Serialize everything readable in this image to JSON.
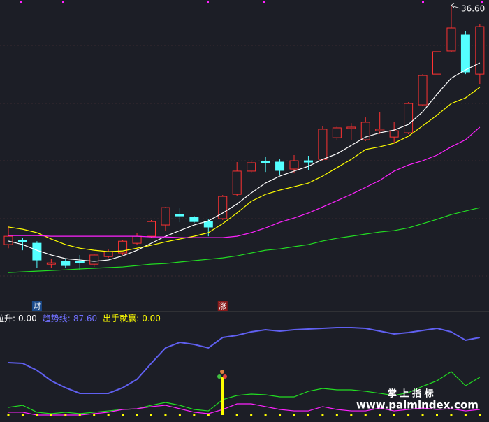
{
  "chart_data": [
    {
      "type": "candlestick",
      "ylim": [
        18.68,
        36.92
      ],
      "up_color": "#ff3232",
      "down_color": "#54ffff",
      "open": [
        22.57,
        22.82,
        22.65,
        21.42,
        21.59,
        21.59,
        21.42,
        21.87,
        22.08,
        22.65,
        23.06,
        23.72,
        24.33,
        24.17,
        23.92,
        24.09,
        25.52,
        26.88,
        27.45,
        27.41,
        27.0,
        27.49,
        27.57,
        28.84,
        29.38,
        28.72,
        29.25,
        28.88,
        29.13,
        30.77,
        32.57,
        33.93,
        34.87,
        32.57
      ],
      "close": [
        23.06,
        22.73,
        21.67,
        21.5,
        21.34,
        21.5,
        21.96,
        22.16,
        22.77,
        23.06,
        23.92,
        24.74,
        24.25,
        23.92,
        23.6,
        25.4,
        26.88,
        27.37,
        27.37,
        26.92,
        27.49,
        27.41,
        29.34,
        29.42,
        29.46,
        29.75,
        29.34,
        29.25,
        30.85,
        32.49,
        33.89,
        35.28,
        32.7,
        35.36
      ],
      "high": [
        23.68,
        22.98,
        22.77,
        21.75,
        21.75,
        21.96,
        22.04,
        22.28,
        22.86,
        23.27,
        24.01,
        24.78,
        24.7,
        24.25,
        24.09,
        25.48,
        27.41,
        27.49,
        27.74,
        27.57,
        27.82,
        27.78,
        29.54,
        29.54,
        29.7,
        30.03,
        30.36,
        29.75,
        30.93,
        32.57,
        33.97,
        36.6,
        35.08,
        35.49
      ],
      "low": [
        22.36,
        22.24,
        21.22,
        21.22,
        21.18,
        21.09,
        21.26,
        21.79,
        21.96,
        22.57,
        22.98,
        23.39,
        23.88,
        23.84,
        23.06,
        24.01,
        25.44,
        26.79,
        26.83,
        26.67,
        26.75,
        26.96,
        27.49,
        28.72,
        28.72,
        28.64,
        29.05,
        28.56,
        29.05,
        30.69,
        32.49,
        33.85,
        32.57,
        32.0
      ],
      "ma_series": [
        {
          "color": "#ffffff",
          "values": [
            22.78,
            22.57,
            22.24,
            21.96,
            21.75,
            21.67,
            21.59,
            21.67,
            21.91,
            22.24,
            22.65,
            23.06,
            23.39,
            23.72,
            23.96,
            24.42,
            24.95,
            25.6,
            26.18,
            26.59,
            26.88,
            27.16,
            27.57,
            27.9,
            28.39,
            28.88,
            29.13,
            29.29,
            29.62,
            30.36,
            31.39,
            32.33,
            32.82,
            33.23
          ]
        },
        {
          "color": "#ffff00",
          "values": [
            23.6,
            23.47,
            23.27,
            22.9,
            22.57,
            22.36,
            22.24,
            22.16,
            22.2,
            22.36,
            22.53,
            22.73,
            22.9,
            23.06,
            23.27,
            23.8,
            24.42,
            25.11,
            25.52,
            25.77,
            25.97,
            26.18,
            26.59,
            27.08,
            27.57,
            28.15,
            28.31,
            28.52,
            28.93,
            29.54,
            30.16,
            30.85,
            31.18,
            31.8
          ]
        },
        {
          "color": "#ff22ff",
          "values": [
            23.1,
            23.1,
            23.1,
            23.06,
            23.06,
            23.06,
            23.06,
            23.06,
            23.06,
            23.06,
            23.02,
            23.02,
            22.98,
            22.98,
            22.98,
            22.98,
            23.06,
            23.27,
            23.55,
            23.88,
            24.13,
            24.42,
            24.78,
            25.15,
            25.52,
            25.93,
            26.34,
            26.88,
            27.24,
            27.49,
            27.82,
            28.31,
            28.72,
            29.46
          ]
        },
        {
          "color": "#22dd22",
          "values": [
            20.93,
            20.97,
            21.01,
            21.05,
            21.09,
            21.14,
            21.18,
            21.22,
            21.26,
            21.34,
            21.42,
            21.46,
            21.55,
            21.63,
            21.71,
            21.79,
            21.91,
            22.08,
            22.24,
            22.32,
            22.45,
            22.57,
            22.78,
            22.94,
            23.06,
            23.19,
            23.31,
            23.39,
            23.55,
            23.8,
            24.05,
            24.33,
            24.54,
            24.74
          ]
        }
      ],
      "max_label": {
        "value": 36.6,
        "label": "36.60"
      },
      "markers": [
        {
          "x": 2,
          "label": "财",
          "color": "#1a4a8a"
        },
        {
          "x": 15,
          "label": "涨",
          "color": "#8a1a1a"
        }
      ]
    },
    {
      "type": "line",
      "ylim": [
        0,
        100
      ],
      "legend": [
        {
          "name": "拉升:",
          "value": 0,
          "label": "0.00",
          "color": "#ffffff"
        },
        {
          "name": "趋势线:",
          "value": 87.6,
          "label": "87.60",
          "color": "#7070ff"
        },
        {
          "name": "出手就赢:",
          "value": 0,
          "label": "0.00",
          "color": "#ffff00"
        }
      ],
      "series": [
        {
          "name": "趋势线",
          "color": "#6060f0",
          "values": [
            59.2,
            58.4,
            50.5,
            38.7,
            30.8,
            24.5,
            24.5,
            24.5,
            30.8,
            40.3,
            58.4,
            75.8,
            82.1,
            79.7,
            75.8,
            87.6,
            90.0,
            93.9,
            96.3,
            94.7,
            96.3,
            97.1,
            97.9,
            98.7,
            98.7,
            97.9,
            94.7,
            91.6,
            93.1,
            95.5,
            97.9,
            93.9,
            84.5,
            87.6
          ]
        },
        {
          "color": "#22dd22",
          "values": [
            8.7,
            11.0,
            3.2,
            1.6,
            3.2,
            1.6,
            3.2,
            4.7,
            6.3,
            7.1,
            11.0,
            14.2,
            11.0,
            6.3,
            4.7,
            17.4,
            22.1,
            23.7,
            22.9,
            20.5,
            20.5,
            26.8,
            30.0,
            28.4,
            28.4,
            26.8,
            24.5,
            22.1,
            25.3,
            32.4,
            38.7,
            48.9,
            33.1,
            42.6
          ]
        },
        {
          "color": "#ff22ff",
          "values": [
            3.2,
            3.2,
            0,
            0,
            0,
            0,
            1.6,
            3.2,
            6.3,
            7.1,
            9.5,
            11.0,
            7.1,
            3.2,
            1.6,
            6.3,
            12.6,
            12.6,
            9.5,
            6.3,
            4.7,
            4.7,
            9.5,
            6.3,
            4.7,
            4.7,
            7.9,
            4.7,
            6.3,
            7.9,
            6.3,
            7.1,
            4.7,
            6.3
          ]
        }
      ],
      "bars": {
        "name": "出手就赢",
        "color": "#ffff00",
        "values": [
          0,
          0,
          0,
          0,
          0,
          0,
          0,
          0,
          0,
          0,
          0,
          0,
          0,
          0,
          0,
          42.6,
          0,
          0,
          0,
          0,
          0,
          0,
          0,
          0,
          0,
          0,
          0,
          0,
          0,
          0,
          0,
          0,
          0,
          0
        ]
      }
    }
  ],
  "watermark": {
    "title": "掌 上 指 标",
    "url": "www.palmindex.com"
  }
}
